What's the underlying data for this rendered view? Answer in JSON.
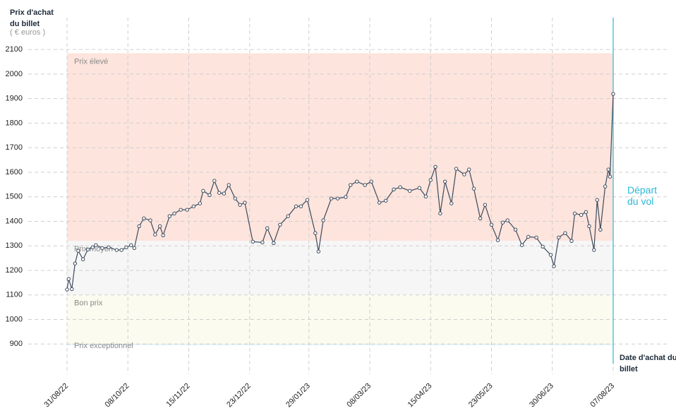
{
  "chart_data": {
    "type": "line",
    "y_title": "Prix d'achat du billet",
    "y_unit": "( € euros )",
    "x_title": "Date d'achat du billet",
    "annotation": "Départ du vol",
    "ylim": [
      780,
      2250
    ],
    "yticks": [
      900,
      1000,
      1100,
      1200,
      1300,
      1400,
      1500,
      1600,
      1700,
      1800,
      1900,
      2000,
      2100
    ],
    "xlim": [
      "31/08/22",
      "07/08/23"
    ],
    "xticks": [
      "31/08/22",
      "08/10/22",
      "15/11/22",
      "23/12/22",
      "29/01/23",
      "08/03/23",
      "15/04/23",
      "23/05/23",
      "30/06/23",
      "07/08/23"
    ],
    "grid": true,
    "bands": [
      {
        "label": "Prix élevé",
        "from": 1320,
        "to": 2085,
        "color": "#fde4dd"
      },
      {
        "label": "Prix moyen",
        "from": 1100,
        "to": 1320,
        "color": "#f6f6f6"
      },
      {
        "label": "Bon prix",
        "from": 900,
        "to": 1100,
        "color": "#fbfbef"
      },
      {
        "label": "Prix exceptionnel",
        "from": 895,
        "to": 900,
        "color": "#e3f3f8"
      }
    ],
    "series": [
      {
        "color": "#3c4a5c",
        "x": [
          "31/08/22",
          "01/09/22",
          "03/09/22",
          "05/09/22",
          "07/09/22",
          "10/09/22",
          "13/09/22",
          "16/09/22",
          "18/09/22",
          "22/09/22",
          "26/09/22",
          "01/10/22",
          "04/10/22",
          "07/10/22",
          "10/10/22",
          "12/10/22",
          "15/10/22",
          "18/10/22",
          "22/10/22",
          "25/10/22",
          "28/10/22",
          "30/10/22",
          "03/11/22",
          "06/11/22",
          "10/11/22",
          "14/11/22",
          "18/11/22",
          "22/11/22",
          "24/11/22",
          "28/11/22",
          "01/12/22",
          "04/12/22",
          "07/12/22",
          "10/12/22",
          "14/12/22",
          "17/12/22",
          "20/12/22",
          "25/12/22",
          "31/12/22",
          "03/01/23",
          "07/01/23",
          "11/01/23",
          "16/01/23",
          "21/01/23",
          "24/01/23",
          "28/01/23",
          "02/02/23",
          "04/02/23",
          "07/02/23",
          "12/02/23",
          "16/02/23",
          "21/02/23",
          "24/02/23",
          "28/02/23",
          "05/03/23",
          "09/03/23",
          "14/03/23",
          "18/03/23",
          "23/03/23",
          "27/03/23",
          "02/04/23",
          "08/04/23",
          "12/04/23",
          "15/04/23",
          "18/04/23",
          "21/04/23",
          "24/04/23",
          "28/04/23",
          "01/05/23",
          "06/05/23",
          "09/05/23",
          "12/05/23",
          "16/05/23",
          "19/05/23",
          "23/05/23",
          "27/05/23",
          "30/05/23",
          "02/06/23",
          "07/06/23",
          "11/06/23",
          "15/06/23",
          "20/06/23",
          "24/06/23",
          "29/06/23",
          "01/07/23",
          "04/07/23",
          "08/07/23",
          "12/07/23",
          "14/07/23",
          "18/07/23",
          "21/07/23",
          "23/07/23",
          "26/07/23",
          "28/07/23",
          "30/07/23",
          "02/08/23",
          "04/08/23",
          "05/08/23",
          "07/08/23"
        ],
        "values": [
          1122,
          1165,
          1124,
          1228,
          1280,
          1245,
          1285,
          1294,
          1303,
          1291,
          1294,
          1283,
          1283,
          1294,
          1303,
          1291,
          1380,
          1412,
          1404,
          1346,
          1380,
          1343,
          1421,
          1432,
          1447,
          1447,
          1461,
          1473,
          1524,
          1507,
          1565,
          1516,
          1513,
          1548,
          1493,
          1467,
          1476,
          1317,
          1314,
          1372,
          1311,
          1386,
          1421,
          1461,
          1461,
          1487,
          1352,
          1277,
          1404,
          1493,
          1493,
          1499,
          1548,
          1562,
          1548,
          1562,
          1476,
          1484,
          1530,
          1539,
          1524,
          1536,
          1501,
          1568,
          1622,
          1432,
          1562,
          1473,
          1614,
          1591,
          1611,
          1533,
          1412,
          1467,
          1386,
          1323,
          1395,
          1404,
          1366,
          1303,
          1337,
          1334,
          1297,
          1263,
          1217,
          1334,
          1352,
          1320,
          1432,
          1426,
          1438,
          1380,
          1283,
          1487,
          1366,
          1542,
          1611,
          1582,
          1919
        ]
      }
    ]
  }
}
